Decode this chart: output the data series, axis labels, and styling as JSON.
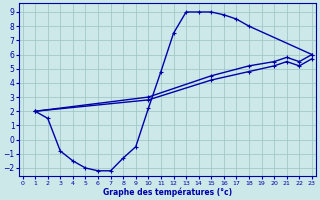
{
  "xlabel": "Graphe des températures (°c)",
  "bg_color": "#cce8e8",
  "line_color": "#0000aa",
  "grid_color": "#a0c8c8",
  "xlim": [
    -0.3,
    23.3
  ],
  "ylim": [
    -2.6,
    9.6
  ],
  "xticks": [
    0,
    1,
    2,
    3,
    4,
    5,
    6,
    7,
    8,
    9,
    10,
    11,
    12,
    13,
    14,
    15,
    16,
    17,
    18,
    19,
    20,
    21,
    22,
    23
  ],
  "yticks": [
    -2,
    -1,
    0,
    1,
    2,
    3,
    4,
    5,
    6,
    7,
    8,
    9
  ],
  "curve_x": [
    1,
    2,
    3,
    4,
    5,
    6,
    7,
    8,
    9,
    10,
    11,
    12,
    13,
    14,
    15,
    16,
    17,
    18,
    23
  ],
  "curve_y": [
    2.0,
    1.5,
    -0.8,
    -1.5,
    -2.0,
    -2.2,
    -2.2,
    -1.3,
    -0.5,
    2.2,
    4.8,
    7.5,
    9.0,
    9.0,
    9.0,
    8.8,
    8.5,
    8.0,
    6.0
  ],
  "diag1_x": [
    1,
    10,
    15,
    18,
    20,
    21,
    22,
    23
  ],
  "diag1_y": [
    2.0,
    3.0,
    4.5,
    5.2,
    5.5,
    5.8,
    5.5,
    6.0
  ],
  "diag2_x": [
    1,
    10,
    15,
    18,
    20,
    21,
    22,
    23
  ],
  "diag2_y": [
    2.0,
    2.8,
    4.2,
    4.8,
    5.2,
    5.5,
    5.2,
    5.7
  ]
}
